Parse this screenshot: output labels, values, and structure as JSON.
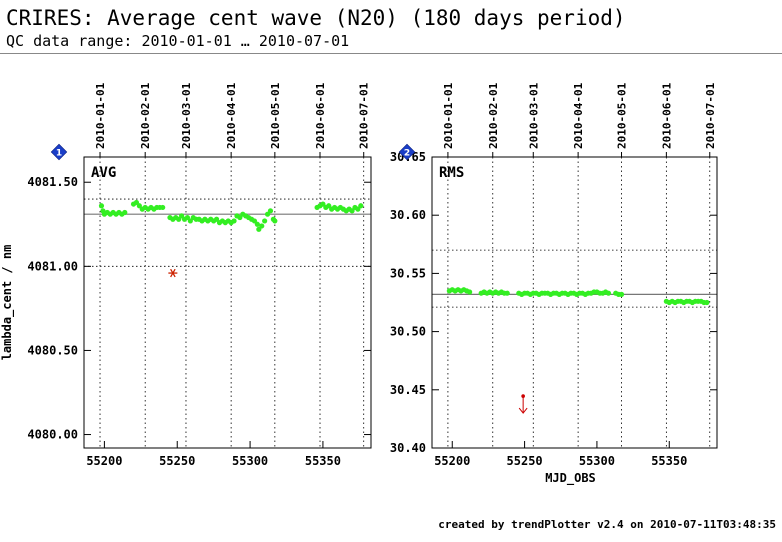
{
  "header": {
    "title": "CRIRES: Average cent wave (N20) (180 days period)",
    "subtitle": "QC data range: 2010-01-01 … 2010-07-01"
  },
  "footer": "created by trendPlotter v2.4 on 2010-07-11T03:48:35",
  "chart_data": [
    {
      "type": "scatter",
      "panel_number": "1",
      "panel_label": "AVG",
      "ylabel": "lambda_cent / nm",
      "xlabel": "",
      "xlim": [
        55186,
        55383
      ],
      "ylim": [
        4079.92,
        4081.65
      ],
      "yticks": [
        4080.0,
        4080.5,
        4081.0,
        4081.5
      ],
      "ytick_labels": [
        "4080.00",
        "4080.50",
        "4081.00",
        "4081.50"
      ],
      "xticks": [
        55200,
        55250,
        55300,
        55350
      ],
      "date_ticks": [
        {
          "mjd": 55197,
          "label": "2010-01-01"
        },
        {
          "mjd": 55228,
          "label": "2010-02-01"
        },
        {
          "mjd": 55256,
          "label": "2010-03-01"
        },
        {
          "mjd": 55287,
          "label": "2010-04-01"
        },
        {
          "mjd": 55317,
          "label": "2010-05-01"
        },
        {
          "mjd": 55348,
          "label": "2010-06-01"
        },
        {
          "mjd": 55378,
          "label": "2010-07-01"
        }
      ],
      "reference_line": 4081.31,
      "threshold_lines": [
        4081.4,
        4081.0
      ],
      "series": [
        {
          "color": "#33ee22",
          "points": [
            [
              55198,
              4081.36
            ],
            [
              55199,
              4081.33
            ],
            [
              55200,
              4081.31
            ],
            [
              55202,
              4081.32
            ],
            [
              55204,
              4081.31
            ],
            [
              55206,
              4081.32
            ],
            [
              55208,
              4081.31
            ],
            [
              55210,
              4081.32
            ],
            [
              55212,
              4081.31
            ],
            [
              55214,
              4081.32
            ],
            [
              55220,
              4081.37
            ],
            [
              55222,
              4081.38
            ],
            [
              55224,
              4081.36
            ],
            [
              55226,
              4081.34
            ],
            [
              55228,
              4081.35
            ],
            [
              55230,
              4081.34
            ],
            [
              55232,
              4081.35
            ],
            [
              55234,
              4081.34
            ],
            [
              55236,
              4081.35
            ],
            [
              55238,
              4081.35
            ],
            [
              55240,
              4081.35
            ],
            [
              55245,
              4081.29
            ],
            [
              55247,
              4081.28
            ],
            [
              55249,
              4081.29
            ],
            [
              55251,
              4081.28
            ],
            [
              55253,
              4081.3
            ],
            [
              55255,
              4081.28
            ],
            [
              55257,
              4081.29
            ],
            [
              55259,
              4081.27
            ],
            [
              55261,
              4081.29
            ],
            [
              55263,
              4081.28
            ],
            [
              55265,
              4081.28
            ],
            [
              55267,
              4081.27
            ],
            [
              55269,
              4081.28
            ],
            [
              55271,
              4081.27
            ],
            [
              55273,
              4081.28
            ],
            [
              55275,
              4081.27
            ],
            [
              55277,
              4081.28
            ],
            [
              55279,
              4081.26
            ],
            [
              55281,
              4081.27
            ],
            [
              55283,
              4081.26
            ],
            [
              55285,
              4081.27
            ],
            [
              55287,
              4081.26
            ],
            [
              55289,
              4081.27
            ],
            [
              55291,
              4081.3
            ],
            [
              55293,
              4081.29
            ],
            [
              55295,
              4081.31
            ],
            [
              55297,
              4081.3
            ],
            [
              55299,
              4081.29
            ],
            [
              55301,
              4081.28
            ],
            [
              55303,
              4081.27
            ],
            [
              55305,
              4081.25
            ],
            [
              55306,
              4081.22
            ],
            [
              55308,
              4081.24
            ],
            [
              55310,
              4081.27
            ],
            [
              55312,
              4081.31
            ],
            [
              55314,
              4081.33
            ],
            [
              55316,
              4081.28
            ],
            [
              55317,
              4081.27
            ],
            [
              55346,
              4081.35
            ],
            [
              55348,
              4081.36
            ],
            [
              55350,
              4081.37
            ],
            [
              55352,
              4081.35
            ],
            [
              55354,
              4081.36
            ],
            [
              55356,
              4081.34
            ],
            [
              55358,
              4081.35
            ],
            [
              55360,
              4081.34
            ],
            [
              55362,
              4081.35
            ],
            [
              55364,
              4081.34
            ],
            [
              55366,
              4081.33
            ],
            [
              55368,
              4081.34
            ],
            [
              55370,
              4081.33
            ],
            [
              55372,
              4081.35
            ],
            [
              55374,
              4081.34
            ],
            [
              55376,
              4081.36
            ]
          ]
        }
      ],
      "outliers": [
        {
          "x": 55247,
          "y": 4080.96,
          "marker": "asterisk",
          "color": "#cc2200"
        }
      ]
    },
    {
      "type": "scatter",
      "panel_number": "2",
      "panel_label": "RMS",
      "ylabel": "",
      "xlabel": "MJD_OBS",
      "xlim": [
        55186,
        55383
      ],
      "ylim": [
        30.4,
        30.65
      ],
      "yticks": [
        30.4,
        30.45,
        30.5,
        30.55,
        30.6,
        30.65
      ],
      "ytick_labels": [
        "30.40",
        "30.45",
        "30.50",
        "30.55",
        "30.60",
        "30.65"
      ],
      "xticks": [
        55200,
        55250,
        55300,
        55350
      ],
      "date_ticks": [
        {
          "mjd": 55197,
          "label": "2010-01-01"
        },
        {
          "mjd": 55228,
          "label": "2010-02-01"
        },
        {
          "mjd": 55256,
          "label": "2010-03-01"
        },
        {
          "mjd": 55287,
          "label": "2010-04-01"
        },
        {
          "mjd": 55317,
          "label": "2010-05-01"
        },
        {
          "mjd": 55348,
          "label": "2010-06-01"
        },
        {
          "mjd": 55378,
          "label": "2010-07-01"
        }
      ],
      "reference_line": 30.532,
      "threshold_lines": [
        30.57,
        30.521
      ],
      "series": [
        {
          "color": "#33ee22",
          "points": [
            [
              55198,
              30.535
            ],
            [
              55200,
              30.536
            ],
            [
              55202,
              30.535
            ],
            [
              55204,
              30.536
            ],
            [
              55206,
              30.535
            ],
            [
              55208,
              30.536
            ],
            [
              55210,
              30.535
            ],
            [
              55212,
              30.534
            ],
            [
              55220,
              30.533
            ],
            [
              55222,
              30.534
            ],
            [
              55224,
              30.533
            ],
            [
              55226,
              30.534
            ],
            [
              55228,
              30.533
            ],
            [
              55230,
              30.534
            ],
            [
              55232,
              30.533
            ],
            [
              55234,
              30.534
            ],
            [
              55236,
              30.533
            ],
            [
              55238,
              30.533
            ],
            [
              55246,
              30.533
            ],
            [
              55248,
              30.532
            ],
            [
              55250,
              30.533
            ],
            [
              55252,
              30.533
            ],
            [
              55254,
              30.532
            ],
            [
              55256,
              30.533
            ],
            [
              55258,
              30.533
            ],
            [
              55260,
              30.532
            ],
            [
              55262,
              30.533
            ],
            [
              55264,
              30.533
            ],
            [
              55266,
              30.533
            ],
            [
              55268,
              30.532
            ],
            [
              55270,
              30.533
            ],
            [
              55272,
              30.533
            ],
            [
              55274,
              30.532
            ],
            [
              55276,
              30.533
            ],
            [
              55278,
              30.533
            ],
            [
              55280,
              30.532
            ],
            [
              55282,
              30.533
            ],
            [
              55284,
              30.533
            ],
            [
              55286,
              30.532
            ],
            [
              55288,
              30.533
            ],
            [
              55290,
              30.533
            ],
            [
              55292,
              30.532
            ],
            [
              55294,
              30.533
            ],
            [
              55296,
              30.533
            ],
            [
              55298,
              30.534
            ],
            [
              55300,
              30.534
            ],
            [
              55302,
              30.533
            ],
            [
              55304,
              30.533
            ],
            [
              55306,
              30.534
            ],
            [
              55308,
              30.533
            ],
            [
              55313,
              30.533
            ],
            [
              55315,
              30.532
            ],
            [
              55317,
              30.532
            ],
            [
              55348,
              30.526
            ],
            [
              55350,
              30.525
            ],
            [
              55352,
              30.526
            ],
            [
              55354,
              30.525
            ],
            [
              55356,
              30.526
            ],
            [
              55358,
              30.526
            ],
            [
              55360,
              30.525
            ],
            [
              55362,
              30.526
            ],
            [
              55364,
              30.526
            ],
            [
              55366,
              30.525
            ],
            [
              55368,
              30.526
            ],
            [
              55370,
              30.526
            ],
            [
              55372,
              30.526
            ],
            [
              55374,
              30.525
            ],
            [
              55376,
              30.525
            ]
          ]
        }
      ],
      "outliers": [
        {
          "x": 55249,
          "y": 30.43,
          "marker": "down-arrow",
          "color": "#cc0000"
        }
      ]
    }
  ]
}
